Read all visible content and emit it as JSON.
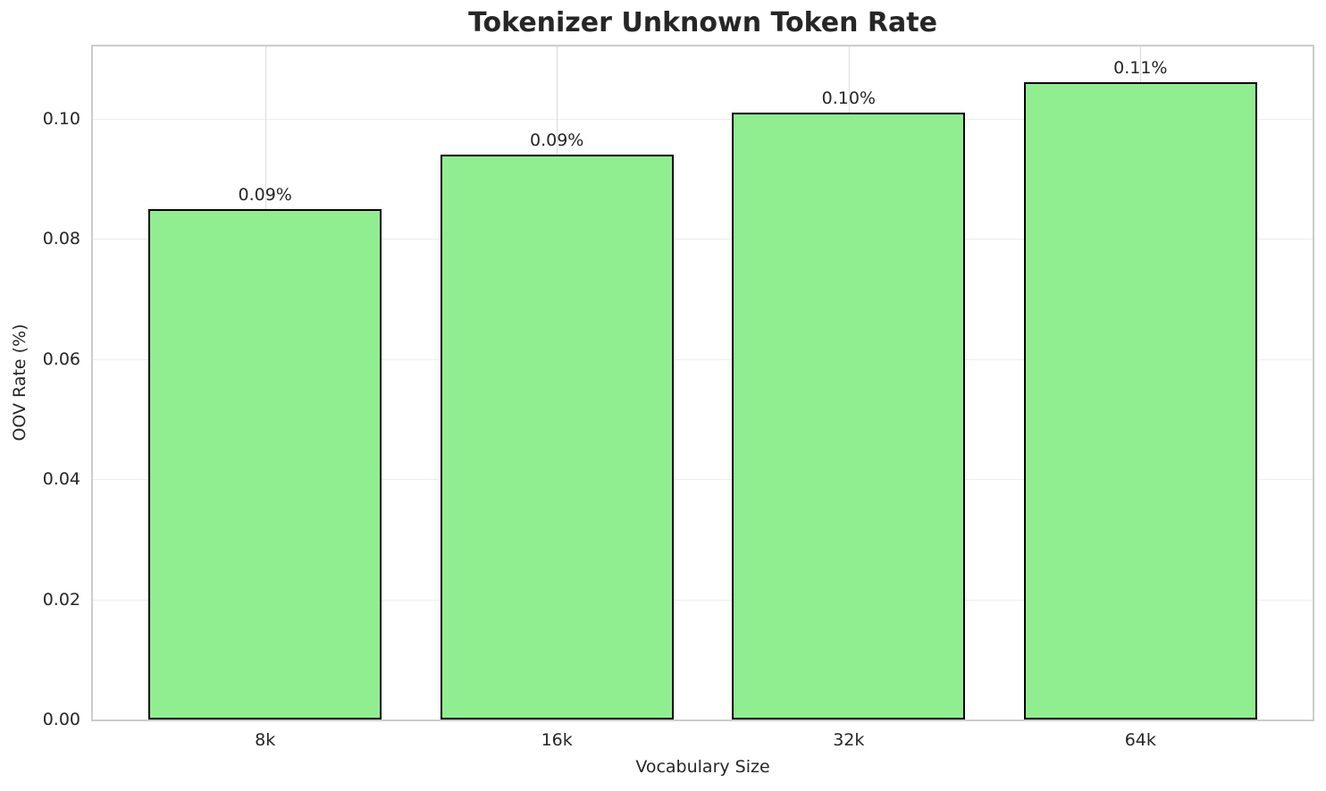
{
  "chart_data": {
    "type": "bar",
    "title": "Tokenizer Unknown Token Rate",
    "xlabel": "Vocabulary Size",
    "ylabel": "OOV Rate (%)",
    "categories": [
      "8k",
      "16k",
      "32k",
      "64k"
    ],
    "values": [
      0.085,
      0.094,
      0.101,
      0.106
    ],
    "bar_value_labels": [
      "0.09%",
      "0.09%",
      "0.10%",
      "0.11%"
    ],
    "yticks": [
      {
        "value": 0.0,
        "label": "0.00"
      },
      {
        "value": 0.02,
        "label": "0.02"
      },
      {
        "value": 0.04,
        "label": "0.04"
      },
      {
        "value": 0.06,
        "label": "0.06"
      },
      {
        "value": 0.08,
        "label": "0.08"
      },
      {
        "value": 0.1,
        "label": "0.10"
      }
    ],
    "ylim": [
      0,
      0.112
    ],
    "xlim": [
      -0.59,
      3.59
    ],
    "bar_width": 0.8,
    "grid": true,
    "legend": false,
    "colors": {
      "bar_fill": "#90EE90",
      "bar_edge": "#000000",
      "grid_horizontal": "#ededed",
      "grid_vertical": "#dcdcdc",
      "spine": "#cccccc",
      "text": "#262626"
    }
  }
}
